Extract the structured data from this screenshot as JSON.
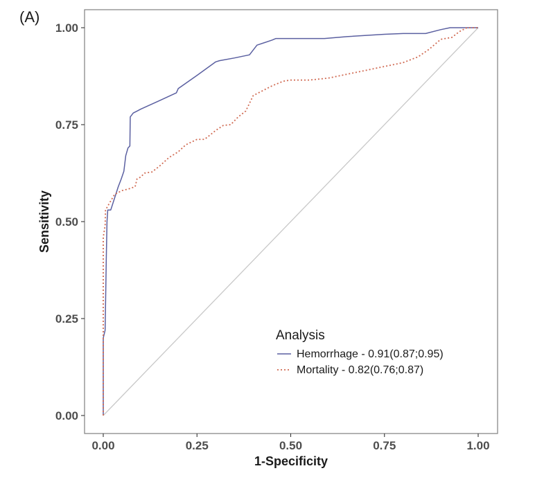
{
  "panel_label": "(A)",
  "chart_data": {
    "type": "line",
    "title": "",
    "xlabel": "1-Specificity",
    "ylabel": "Sensitivity",
    "xlim": [
      0,
      1
    ],
    "ylim": [
      0,
      1
    ],
    "x_ticks": [
      "0.00",
      "0.25",
      "0.50",
      "0.75",
      "1.00"
    ],
    "y_ticks": [
      "0.00",
      "0.25",
      "0.50",
      "0.75",
      "1.00"
    ],
    "grid": false,
    "reference_line": {
      "from": [
        0,
        0
      ],
      "to": [
        1,
        1
      ],
      "color": "#c8c8c8"
    },
    "legend": {
      "title": "Analysis",
      "position": "bottom-right"
    },
    "series": [
      {
        "name": "Hemorrhage - 0.91(0.87;0.95)",
        "color": "#5a5fa0",
        "dash": "solid",
        "points": [
          [
            0.0,
            0.0
          ],
          [
            0.0,
            0.2
          ],
          [
            0.005,
            0.22
          ],
          [
            0.008,
            0.4
          ],
          [
            0.01,
            0.5
          ],
          [
            0.012,
            0.53
          ],
          [
            0.02,
            0.53
          ],
          [
            0.03,
            0.56
          ],
          [
            0.04,
            0.59
          ],
          [
            0.048,
            0.61
          ],
          [
            0.055,
            0.63
          ],
          [
            0.06,
            0.67
          ],
          [
            0.066,
            0.69
          ],
          [
            0.071,
            0.695
          ],
          [
            0.072,
            0.77
          ],
          [
            0.08,
            0.78
          ],
          [
            0.09,
            0.785
          ],
          [
            0.1,
            0.79
          ],
          [
            0.15,
            0.812
          ],
          [
            0.195,
            0.832
          ],
          [
            0.2,
            0.843
          ],
          [
            0.25,
            0.877
          ],
          [
            0.3,
            0.912
          ],
          [
            0.31,
            0.915
          ],
          [
            0.35,
            0.922
          ],
          [
            0.39,
            0.93
          ],
          [
            0.41,
            0.955
          ],
          [
            0.45,
            0.968
          ],
          [
            0.46,
            0.972
          ],
          [
            0.5,
            0.972
          ],
          [
            0.59,
            0.972
          ],
          [
            0.65,
            0.977
          ],
          [
            0.75,
            0.983
          ],
          [
            0.8,
            0.985
          ],
          [
            0.86,
            0.985
          ],
          [
            0.9,
            0.995
          ],
          [
            0.925,
            1.0
          ],
          [
            1.0,
            1.0
          ]
        ]
      },
      {
        "name": "Mortality - 0.82(0.76;0.87)",
        "color": "#d06a52",
        "dash": "dotted",
        "points": [
          [
            0.0,
            0.0
          ],
          [
            0.0,
            0.46
          ],
          [
            0.005,
            0.49
          ],
          [
            0.006,
            0.53
          ],
          [
            0.015,
            0.545
          ],
          [
            0.03,
            0.57
          ],
          [
            0.05,
            0.58
          ],
          [
            0.07,
            0.585
          ],
          [
            0.085,
            0.59
          ],
          [
            0.09,
            0.61
          ],
          [
            0.1,
            0.615
          ],
          [
            0.11,
            0.625
          ],
          [
            0.13,
            0.628
          ],
          [
            0.15,
            0.643
          ],
          [
            0.175,
            0.665
          ],
          [
            0.2,
            0.68
          ],
          [
            0.22,
            0.698
          ],
          [
            0.25,
            0.712
          ],
          [
            0.27,
            0.712
          ],
          [
            0.3,
            0.735
          ],
          [
            0.32,
            0.748
          ],
          [
            0.34,
            0.75
          ],
          [
            0.36,
            0.77
          ],
          [
            0.38,
            0.785
          ],
          [
            0.4,
            0.825
          ],
          [
            0.42,
            0.835
          ],
          [
            0.45,
            0.85
          ],
          [
            0.48,
            0.862
          ],
          [
            0.5,
            0.865
          ],
          [
            0.55,
            0.865
          ],
          [
            0.6,
            0.87
          ],
          [
            0.7,
            0.89
          ],
          [
            0.8,
            0.91
          ],
          [
            0.84,
            0.925
          ],
          [
            0.87,
            0.945
          ],
          [
            0.9,
            0.97
          ],
          [
            0.93,
            0.975
          ],
          [
            0.95,
            0.99
          ],
          [
            0.97,
            1.0
          ],
          [
            1.0,
            1.0
          ]
        ]
      }
    ]
  }
}
